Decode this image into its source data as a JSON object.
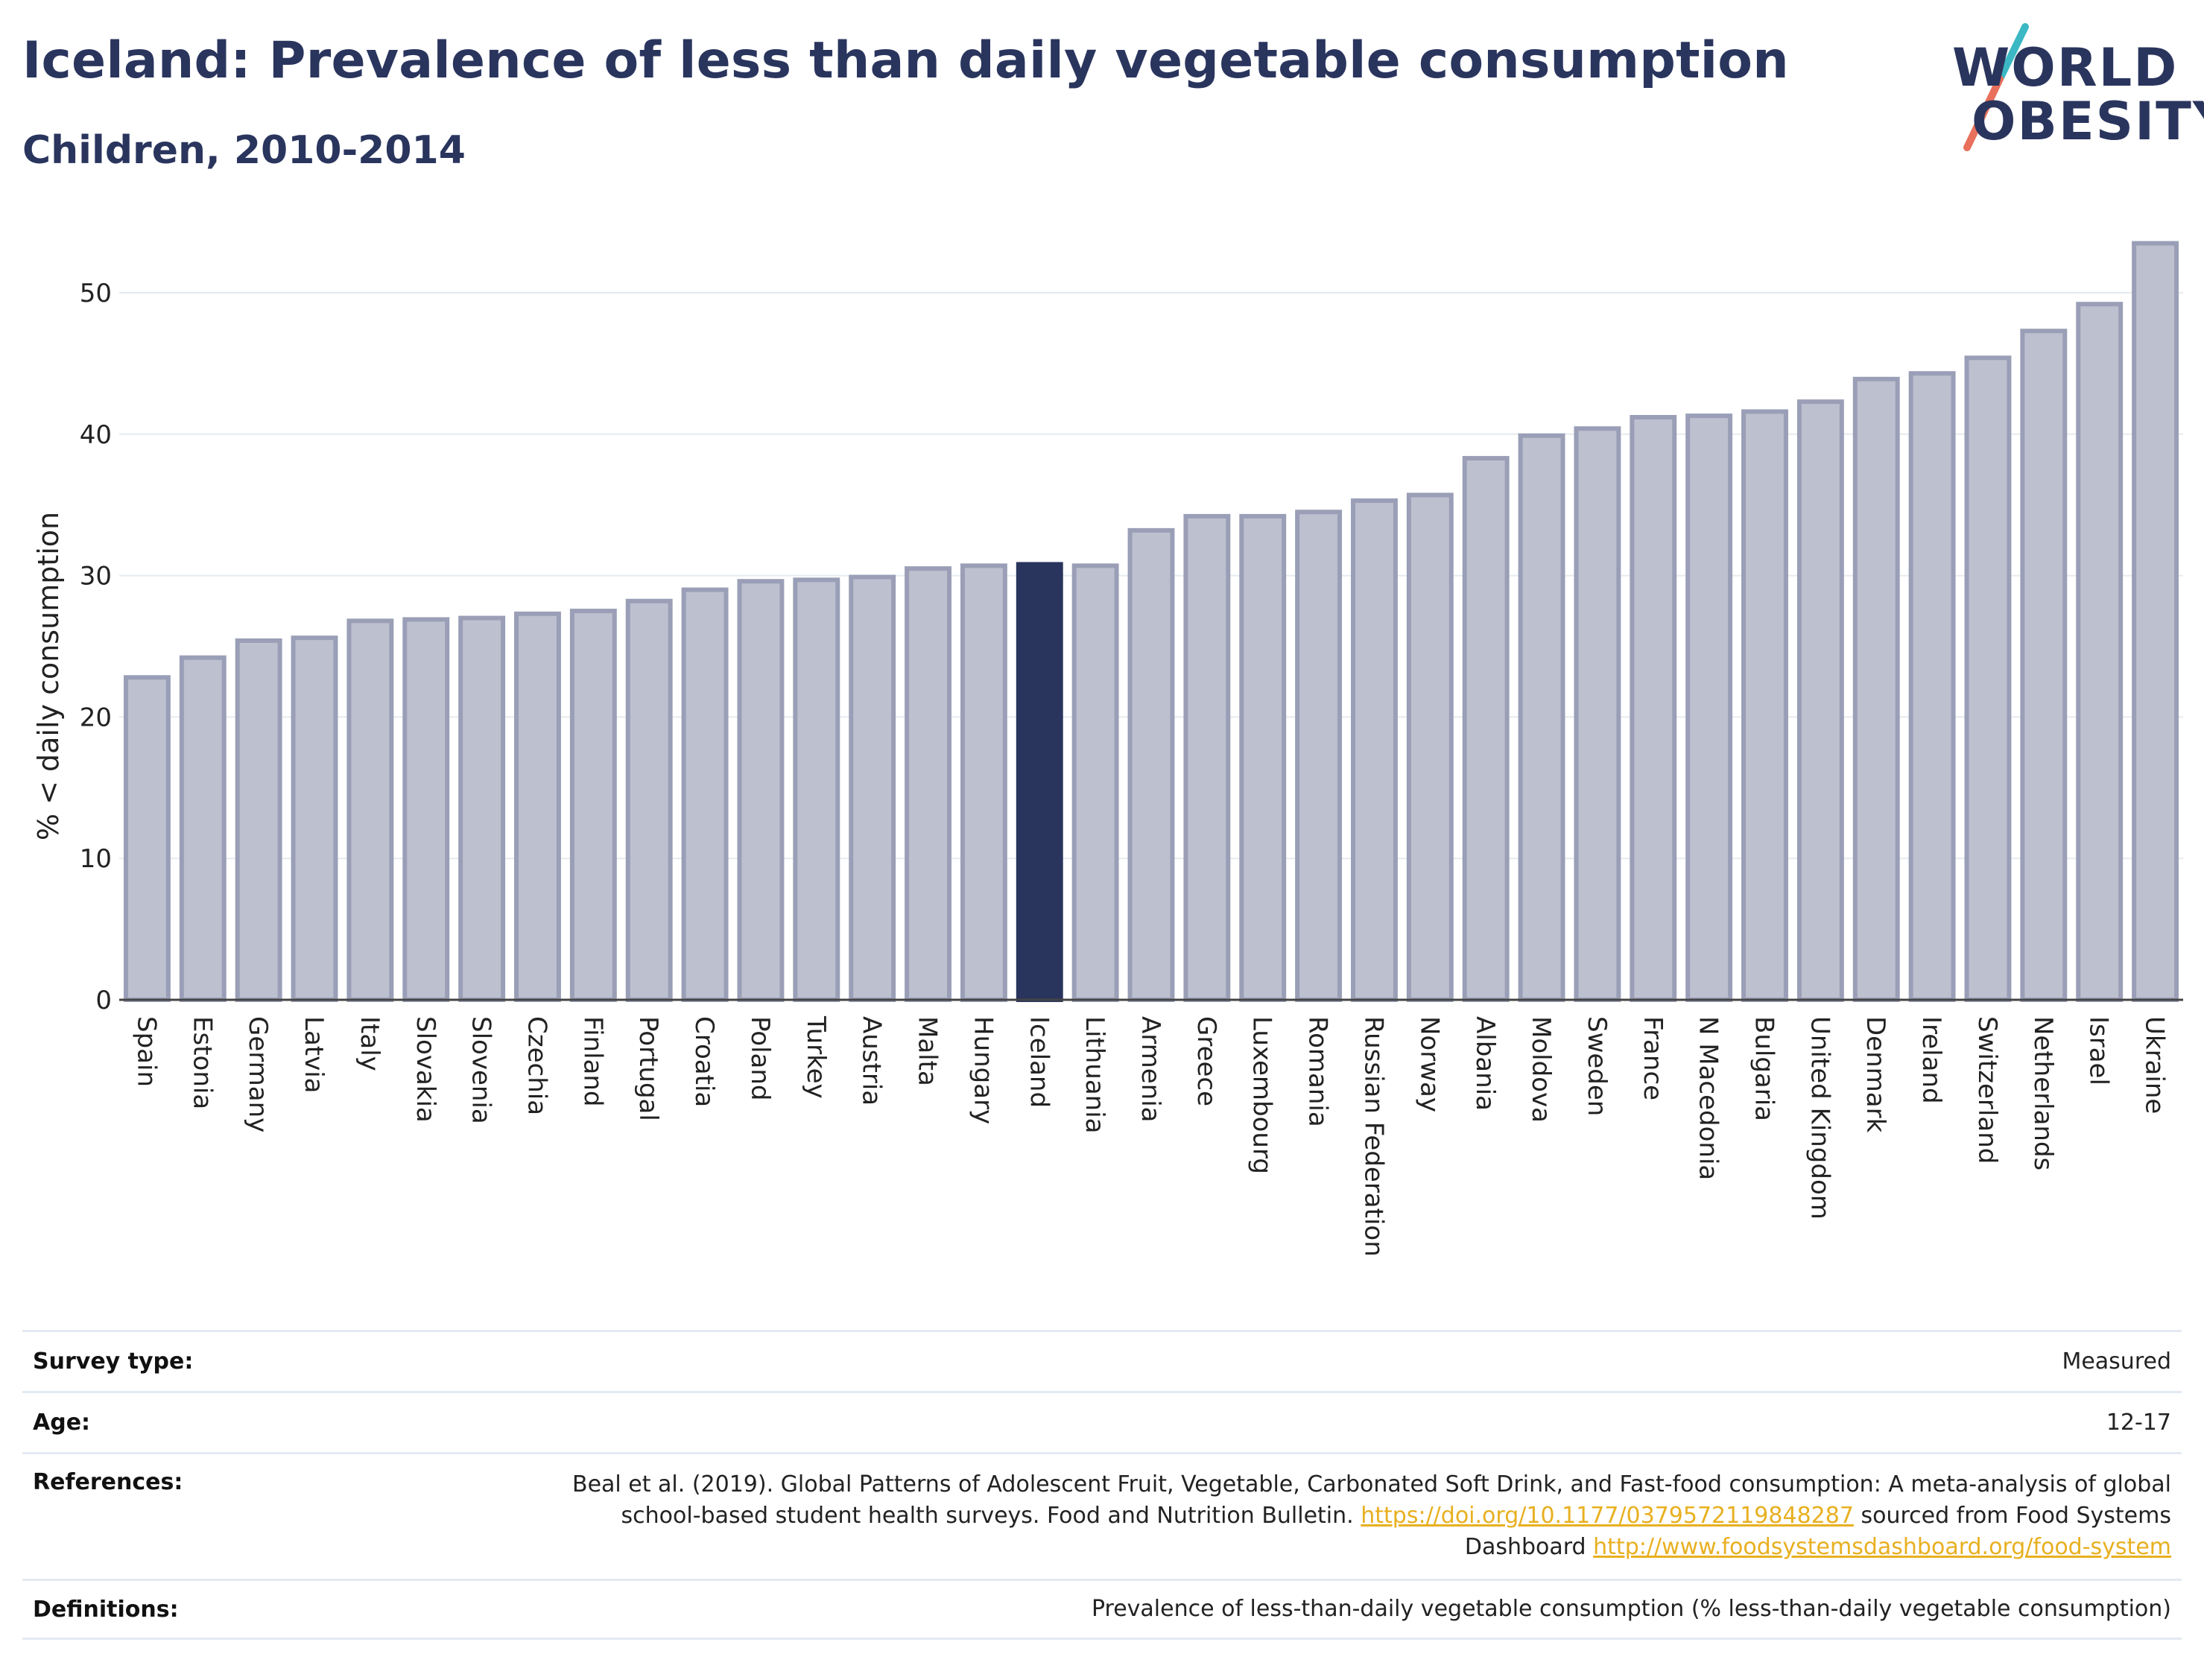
{
  "header": {
    "title": "Iceland: Prevalence of less than daily vegetable consumption",
    "subtitle": "Children, 2010-2014"
  },
  "logo": {
    "line1": "WORLD",
    "line2": "OBESITY",
    "colors": {
      "text": "#2a355e",
      "slash_top": "#3bb8c3",
      "slash_bottom": "#e8705c"
    }
  },
  "chart_data": {
    "type": "bar",
    "ylabel": "% < daily consumption",
    "ylim": [
      0,
      55
    ],
    "yticks": [
      0,
      10,
      20,
      30,
      40,
      50
    ],
    "grid": true,
    "highlight": "Iceland",
    "colors": {
      "bar": "#bcc0cf",
      "bar_edge": "#9a9fb7",
      "highlight": "#2a355e"
    },
    "categories": [
      "Spain",
      "Estonia",
      "Germany",
      "Latvia",
      "Italy",
      "Slovakia",
      "Slovenia",
      "Czechia",
      "Finland",
      "Portugal",
      "Croatia",
      "Poland",
      "Turkey",
      "Austria",
      "Malta",
      "Hungary",
      "Iceland",
      "Lithuania",
      "Armenia",
      "Greece",
      "Luxembourg",
      "Romania",
      "Russian Federation",
      "Norway",
      "Albania",
      "Moldova",
      "Sweden",
      "France",
      "N Macedonia",
      "Bulgaria",
      "United Kingdom",
      "Denmark",
      "Ireland",
      "Switzerland",
      "Netherlands",
      "Israel",
      "Ukraine"
    ],
    "values": [
      22.8,
      24.2,
      25.4,
      25.6,
      26.8,
      26.9,
      27.0,
      27.3,
      27.5,
      28.2,
      29.0,
      29.6,
      29.7,
      29.9,
      30.5,
      30.7,
      30.8,
      30.7,
      33.2,
      34.2,
      34.2,
      34.5,
      35.3,
      35.7,
      38.3,
      39.9,
      40.4,
      41.2,
      41.3,
      41.6,
      42.3,
      43.9,
      44.3,
      45.4,
      47.3,
      49.2,
      53.5
    ]
  },
  "meta": {
    "survey_type": {
      "label": "Survey type:",
      "value": "Measured"
    },
    "age": {
      "label": "Age:",
      "value": "12-17"
    },
    "references": {
      "label": "References:",
      "text1": "Beal et al. (2019). Global Patterns of Adolescent Fruit, Vegetable, Carbonated Soft Drink, and Fast-food consumption: A meta-analysis of global school-based student health surveys. Food and Nutrition Bulletin.",
      "link1": "https://doi.org/10.1177/0379572119848287",
      "text2": "sourced from Food Systems Dashboard",
      "link2": "http://www.foodsystemsdashboard.org/food-system"
    },
    "definitions": {
      "label": "Definitions:",
      "value": "Prevalence of less-than-daily vegetable consumption (% less-than-daily vegetable consumption)"
    }
  }
}
